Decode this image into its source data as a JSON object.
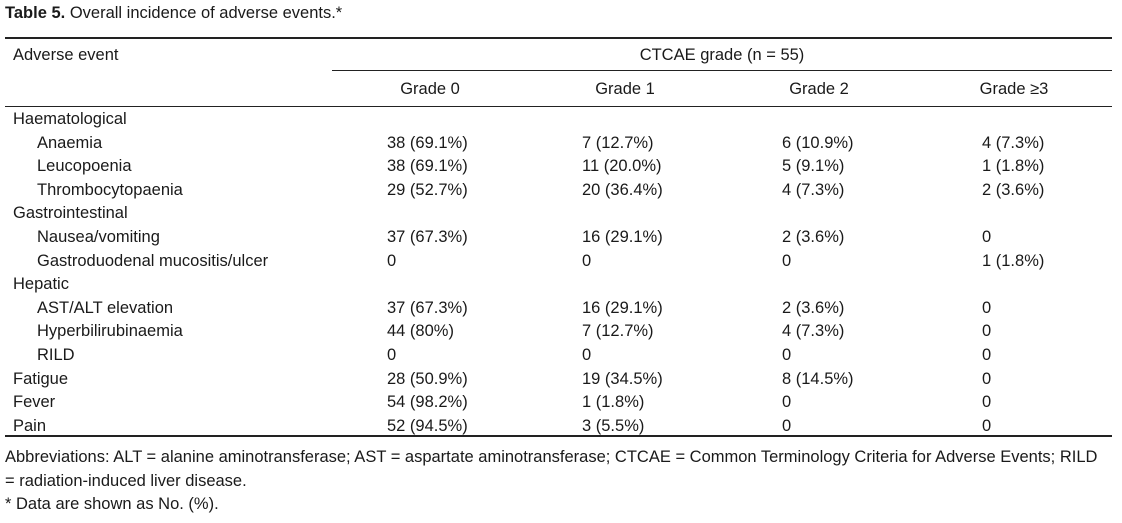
{
  "caption": {
    "label": "Table 5.",
    "text": "Overall incidence of adverse events.*"
  },
  "table": {
    "event_header": "Adverse event",
    "group_header": "CTCAE grade (n = 55)",
    "grade_headers": [
      "Grade 0",
      "Grade 1",
      "Grade 2",
      "Grade ≥3"
    ],
    "rows": [
      {
        "label": "Haematological",
        "level": 0,
        "cells": [
          "",
          "",
          "",
          ""
        ]
      },
      {
        "label": "Anaemia",
        "level": 1,
        "cells": [
          "38 (69.1%)",
          "7 (12.7%)",
          "6 (10.9%)",
          "4 (7.3%)"
        ]
      },
      {
        "label": "Leucopoenia",
        "level": 1,
        "cells": [
          "38 (69.1%)",
          "11 (20.0%)",
          "5 (9.1%)",
          "1 (1.8%)"
        ]
      },
      {
        "label": "Thrombocytopaenia",
        "level": 1,
        "cells": [
          "29 (52.7%)",
          "20 (36.4%)",
          "4 (7.3%)",
          "2 (3.6%)"
        ]
      },
      {
        "label": "Gastrointestinal",
        "level": 0,
        "cells": [
          "",
          "",
          "",
          ""
        ]
      },
      {
        "label": "Nausea/vomiting",
        "level": 1,
        "cells": [
          "37 (67.3%)",
          "16 (29.1%)",
          "2 (3.6%)",
          "0"
        ]
      },
      {
        "label": "Gastroduodenal mucositis/ulcer",
        "level": 1,
        "cells": [
          "0",
          "0",
          "0",
          "1 (1.8%)"
        ]
      },
      {
        "label": "Hepatic",
        "level": 0,
        "cells": [
          "",
          "",
          "",
          ""
        ]
      },
      {
        "label": "AST/ALT elevation",
        "level": 1,
        "cells": [
          "37 (67.3%)",
          "16 (29.1%)",
          "2 (3.6%)",
          "0"
        ]
      },
      {
        "label": "Hyperbilirubinaemia",
        "level": 1,
        "cells": [
          "44 (80%)",
          "7 (12.7%)",
          "4 (7.3%)",
          "0"
        ]
      },
      {
        "label": "RILD",
        "level": 1,
        "cells": [
          "0",
          "0",
          "0",
          "0"
        ]
      },
      {
        "label": "Fatigue",
        "level": 0,
        "cells": [
          "28 (50.9%)",
          "19 (34.5%)",
          "8 (14.5%)",
          "0"
        ]
      },
      {
        "label": "Fever",
        "level": 0,
        "cells": [
          "54 (98.2%)",
          "1 (1.8%)",
          "0",
          "0"
        ]
      },
      {
        "label": "Pain",
        "level": 0,
        "cells": [
          "52 (94.5%)",
          "3 (5.5%)",
          "0",
          "0"
        ]
      }
    ]
  },
  "footnotes": {
    "abbreviations": "Abbreviations: ALT = alanine aminotransferase; AST = aspartate aminotransferase; CTCAE = Common Terminology Criteria for Adverse Events; RILD = radiation-induced liver disease.",
    "data_note": "* Data are shown as No. (%)."
  }
}
